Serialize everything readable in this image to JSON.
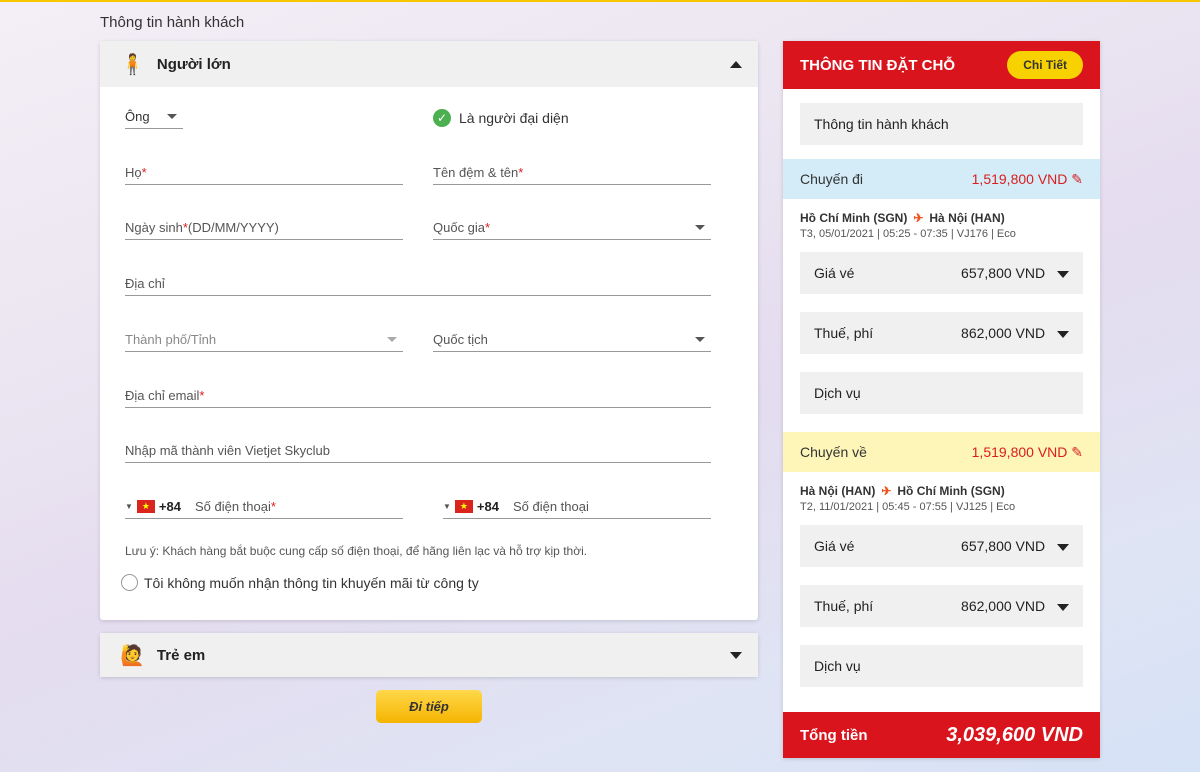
{
  "section_title": "Thông tin hành khách",
  "adult": {
    "title": "Người lớn",
    "title_select": "Ông",
    "representative": "Là người đại diện",
    "last_name": "Họ",
    "first_name": "Tên đệm & tên",
    "dob": "Ngày sinh",
    "dob_format": "(DD/MM/YYYY)",
    "country": "Quốc gia",
    "address": "Địa chỉ",
    "city": "Thành phố/Tỉnh",
    "nationality": "Quốc tịch",
    "email": "Địa chỉ email",
    "member": "Nhập mã thành viên Vietjet Skyclub",
    "dial_code": "+84",
    "phone": "Số điện thoại",
    "phone2": "Số điện thoại",
    "note": "Lưu ý: Khách hàng bắt buộc cung cấp số điện thoại, để hãng liên lạc và hỗ trợ kịp thời.",
    "no_promo": "Tôi không muốn nhận thông tin khuyến mãi từ công ty",
    "required_mark": "*"
  },
  "child": {
    "title": "Trẻ em"
  },
  "next_button": "Đi tiếp",
  "summary": {
    "title": "THÔNG TIN ĐẶT CHỖ",
    "detail_button": "Chi Tiết",
    "passenger_info": "Thông tin hành khách",
    "outbound": {
      "label": "Chuyến đi",
      "price": "1,519,800 VND",
      "from": "Hồ Chí Minh (SGN)",
      "to": "Hà Nội (HAN)",
      "info": "T3, 05/01/2021 | 05:25 - 07:35 | VJ176 | Eco",
      "fare_label": "Giá vé",
      "fare": "657,800 VND",
      "tax_label": "Thuế, phí",
      "tax": "862,000 VND",
      "service_label": "Dịch vụ"
    },
    "inbound": {
      "label": "Chuyến về",
      "price": "1,519,800 VND",
      "from": "Hà Nội (HAN)",
      "to": "Hồ Chí Minh (SGN)",
      "info": "T2, 11/01/2021 | 05:45 - 07:55 | VJ125 | Eco",
      "fare_label": "Giá vé",
      "fare": "657,800 VND",
      "tax_label": "Thuế, phí",
      "tax": "862,000 VND",
      "service_label": "Dịch vụ"
    },
    "total_label": "Tổng tiền",
    "total": "3,039,600 VND"
  },
  "colors": {
    "brand_red": "#d9141d",
    "brand_yellow": "#f7d200",
    "outbound_bg": "#d3ecf8",
    "inbound_bg": "#fdf6b8"
  }
}
